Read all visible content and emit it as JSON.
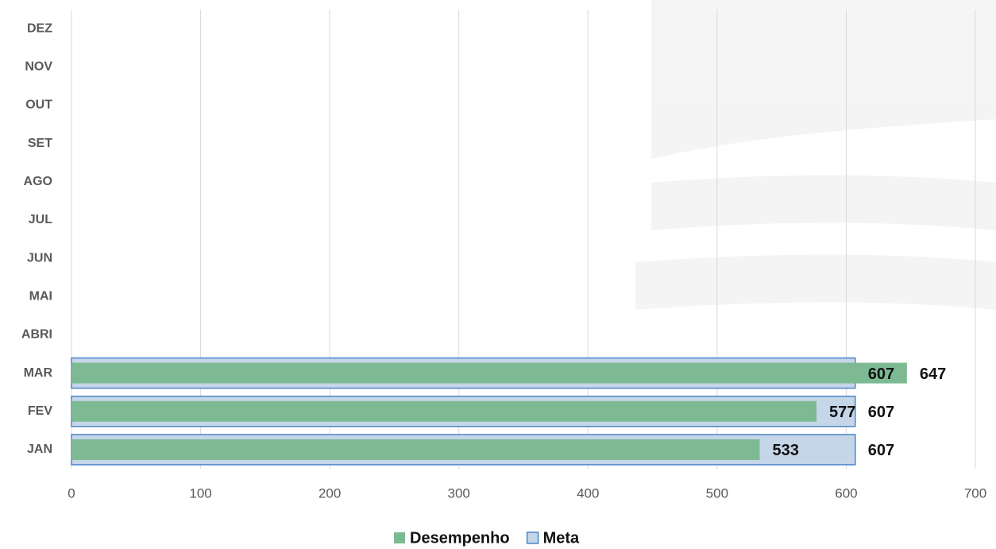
{
  "chart_data": {
    "type": "bar",
    "orientation": "horizontal",
    "categories": [
      "JAN",
      "FEV",
      "MAR",
      "ABRI",
      "MAI",
      "JUN",
      "JUL",
      "AGO",
      "SET",
      "OUT",
      "NOV",
      "DEZ"
    ],
    "series": [
      {
        "name": "Desempenho",
        "color": "#7dba93",
        "values": [
          533,
          577,
          647,
          null,
          null,
          null,
          null,
          null,
          null,
          null,
          null,
          null
        ]
      },
      {
        "name": "Meta",
        "color": "#c6d6e9",
        "values": [
          607,
          607,
          607,
          null,
          null,
          null,
          null,
          null,
          null,
          null,
          null,
          null
        ]
      }
    ],
    "xlim": [
      0,
      700
    ],
    "xticks": [
      0,
      100,
      200,
      300,
      400,
      500,
      600,
      700
    ],
    "grid": true
  }
}
